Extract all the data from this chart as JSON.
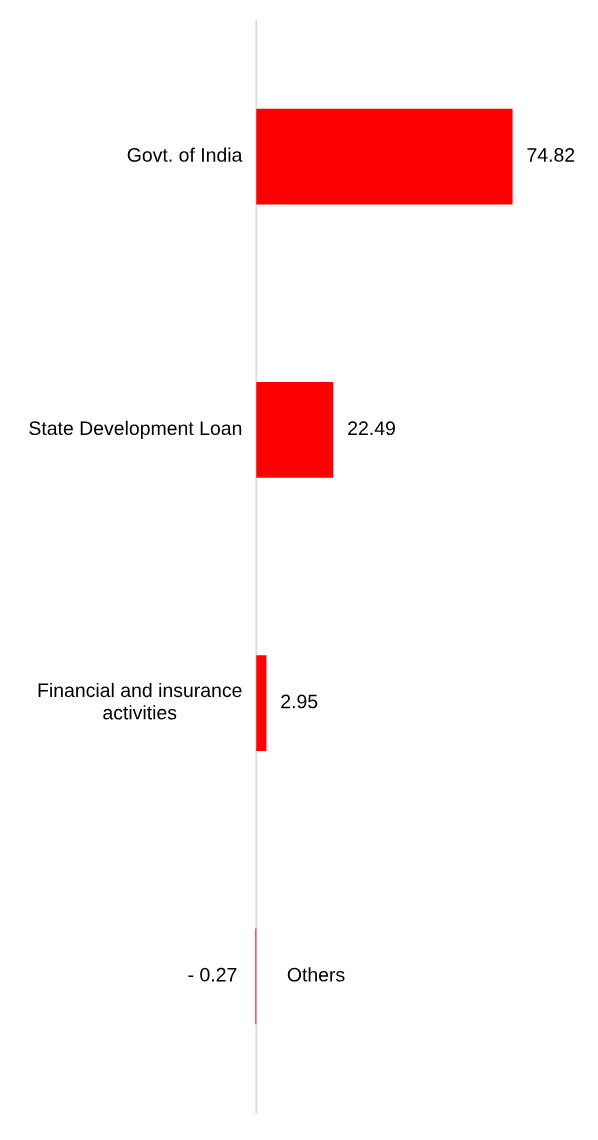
{
  "chart_data": {
    "type": "bar",
    "orientation": "horizontal",
    "categories": [
      "Govt. of India",
      "State Development Loan",
      "Financial and insurance activities",
      "Others"
    ],
    "values": [
      74.82,
      22.49,
      2.95,
      -0.27
    ],
    "color": "#ff0000",
    "value_labels": [
      "74.82",
      "22.49",
      "2.95",
      "- 0.27"
    ],
    "tick_labels": "y"
  }
}
